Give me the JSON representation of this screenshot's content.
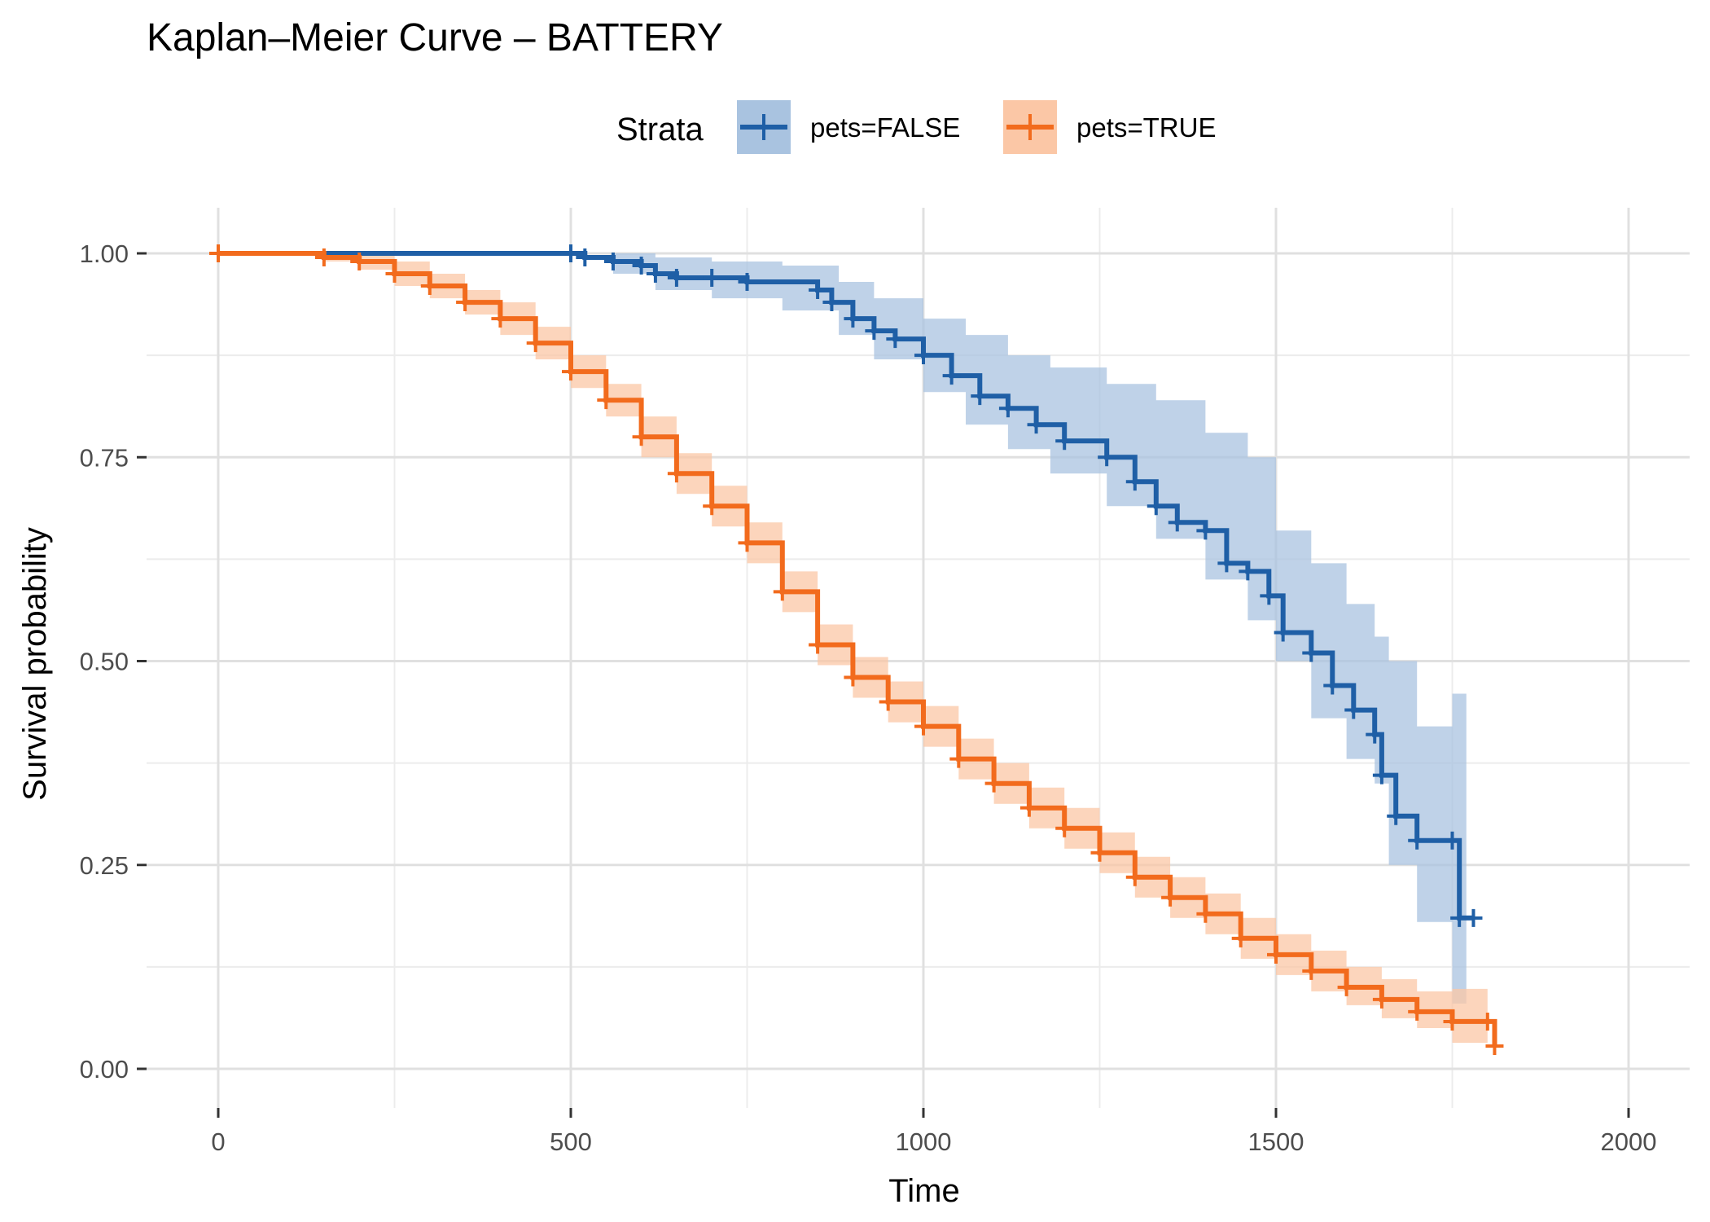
{
  "chart_data": {
    "type": "line",
    "title": "Kaplan–Meier Curve – BATTERY",
    "xlabel": "Time",
    "ylabel": "Survival probability",
    "xlim": [
      0,
      2000
    ],
    "ylim": [
      0,
      1
    ],
    "x_ticks": [
      "0",
      "500",
      "1000",
      "1500",
      "2000"
    ],
    "y_ticks": [
      "0.00",
      "0.25",
      "0.50",
      "0.75",
      "1.00"
    ],
    "grid": true,
    "legend": {
      "title": "Strata",
      "position": "top-center",
      "entries": [
        "pets=FALSE",
        "pets=TRUE"
      ]
    },
    "series": [
      {
        "name": "pets=FALSE",
        "color": "#1f5fa6",
        "band_color": "#a9c3e0",
        "points": [
          [
            0,
            1.0
          ],
          [
            500,
            1.0
          ],
          [
            520,
            0.995
          ],
          [
            560,
            0.99
          ],
          [
            600,
            0.985
          ],
          [
            620,
            0.975
          ],
          [
            650,
            0.97
          ],
          [
            700,
            0.97
          ],
          [
            750,
            0.965
          ],
          [
            850,
            0.955
          ],
          [
            870,
            0.94
          ],
          [
            900,
            0.92
          ],
          [
            930,
            0.905
          ],
          [
            960,
            0.895
          ],
          [
            1000,
            0.875
          ],
          [
            1040,
            0.85
          ],
          [
            1080,
            0.825
          ],
          [
            1120,
            0.81
          ],
          [
            1160,
            0.79
          ],
          [
            1200,
            0.77
          ],
          [
            1260,
            0.75
          ],
          [
            1300,
            0.72
          ],
          [
            1330,
            0.69
          ],
          [
            1360,
            0.67
          ],
          [
            1400,
            0.66
          ],
          [
            1430,
            0.62
          ],
          [
            1460,
            0.61
          ],
          [
            1490,
            0.58
          ],
          [
            1510,
            0.535
          ],
          [
            1550,
            0.51
          ],
          [
            1580,
            0.47
          ],
          [
            1610,
            0.44
          ],
          [
            1640,
            0.41
          ],
          [
            1650,
            0.36
          ],
          [
            1670,
            0.31
          ],
          [
            1700,
            0.28
          ],
          [
            1750,
            0.28
          ],
          [
            1760,
            0.185
          ],
          [
            1780,
            0.185
          ]
        ],
        "upper": [
          [
            0,
            1.0
          ],
          [
            500,
            1.0
          ],
          [
            560,
            1.0
          ],
          [
            620,
            0.995
          ],
          [
            700,
            0.99
          ],
          [
            800,
            0.985
          ],
          [
            880,
            0.965
          ],
          [
            930,
            0.945
          ],
          [
            1000,
            0.92
          ],
          [
            1060,
            0.9
          ],
          [
            1120,
            0.875
          ],
          [
            1180,
            0.86
          ],
          [
            1260,
            0.84
          ],
          [
            1330,
            0.82
          ],
          [
            1400,
            0.78
          ],
          [
            1460,
            0.75
          ],
          [
            1500,
            0.66
          ],
          [
            1550,
            0.62
          ],
          [
            1600,
            0.57
          ],
          [
            1640,
            0.53
          ],
          [
            1660,
            0.5
          ],
          [
            1700,
            0.42
          ],
          [
            1750,
            0.46
          ],
          [
            1770,
            0.46
          ]
        ],
        "lower": [
          [
            0,
            1.0
          ],
          [
            500,
            1.0
          ],
          [
            560,
            0.975
          ],
          [
            620,
            0.955
          ],
          [
            700,
            0.945
          ],
          [
            800,
            0.93
          ],
          [
            880,
            0.9
          ],
          [
            930,
            0.87
          ],
          [
            1000,
            0.83
          ],
          [
            1060,
            0.79
          ],
          [
            1120,
            0.76
          ],
          [
            1180,
            0.73
          ],
          [
            1260,
            0.69
          ],
          [
            1330,
            0.65
          ],
          [
            1400,
            0.6
          ],
          [
            1460,
            0.55
          ],
          [
            1500,
            0.5
          ],
          [
            1550,
            0.43
          ],
          [
            1600,
            0.38
          ],
          [
            1640,
            0.35
          ],
          [
            1660,
            0.25
          ],
          [
            1700,
            0.18
          ],
          [
            1750,
            0.08
          ],
          [
            1770,
            0.08
          ]
        ]
      },
      {
        "name": "pets=TRUE",
        "color": "#f26b1d",
        "band_color": "#fbc7a6",
        "points": [
          [
            0,
            1.0
          ],
          [
            150,
            0.995
          ],
          [
            200,
            0.99
          ],
          [
            250,
            0.975
          ],
          [
            300,
            0.96
          ],
          [
            350,
            0.94
          ],
          [
            400,
            0.92
          ],
          [
            450,
            0.89
          ],
          [
            500,
            0.855
          ],
          [
            550,
            0.82
          ],
          [
            600,
            0.775
          ],
          [
            650,
            0.73
          ],
          [
            700,
            0.69
          ],
          [
            750,
            0.645
          ],
          [
            800,
            0.585
          ],
          [
            850,
            0.52
          ],
          [
            900,
            0.48
          ],
          [
            950,
            0.45
          ],
          [
            1000,
            0.42
          ],
          [
            1050,
            0.38
          ],
          [
            1100,
            0.35
          ],
          [
            1150,
            0.32
          ],
          [
            1200,
            0.295
          ],
          [
            1250,
            0.265
          ],
          [
            1300,
            0.235
          ],
          [
            1350,
            0.21
          ],
          [
            1400,
            0.19
          ],
          [
            1450,
            0.16
          ],
          [
            1500,
            0.14
          ],
          [
            1550,
            0.12
          ],
          [
            1600,
            0.1
          ],
          [
            1650,
            0.085
          ],
          [
            1700,
            0.07
          ],
          [
            1750,
            0.058
          ],
          [
            1800,
            0.058
          ],
          [
            1810,
            0.028
          ]
        ],
        "upper": [
          [
            0,
            1.0
          ],
          [
            150,
            1.0
          ],
          [
            200,
            1.0
          ],
          [
            250,
            0.99
          ],
          [
            300,
            0.975
          ],
          [
            350,
            0.955
          ],
          [
            400,
            0.94
          ],
          [
            450,
            0.91
          ],
          [
            500,
            0.875
          ],
          [
            550,
            0.84
          ],
          [
            600,
            0.8
          ],
          [
            650,
            0.755
          ],
          [
            700,
            0.715
          ],
          [
            750,
            0.67
          ],
          [
            800,
            0.61
          ],
          [
            850,
            0.545
          ],
          [
            900,
            0.505
          ],
          [
            950,
            0.475
          ],
          [
            1000,
            0.445
          ],
          [
            1050,
            0.405
          ],
          [
            1100,
            0.375
          ],
          [
            1150,
            0.345
          ],
          [
            1200,
            0.32
          ],
          [
            1250,
            0.29
          ],
          [
            1300,
            0.26
          ],
          [
            1350,
            0.235
          ],
          [
            1400,
            0.215
          ],
          [
            1450,
            0.185
          ],
          [
            1500,
            0.165
          ],
          [
            1550,
            0.145
          ],
          [
            1600,
            0.125
          ],
          [
            1650,
            0.11
          ],
          [
            1700,
            0.095
          ],
          [
            1750,
            0.098
          ],
          [
            1795,
            0.098
          ],
          [
            1800,
            0.125
          ]
        ],
        "lower": [
          [
            0,
            1.0
          ],
          [
            150,
            0.99
          ],
          [
            200,
            0.98
          ],
          [
            250,
            0.96
          ],
          [
            300,
            0.945
          ],
          [
            350,
            0.925
          ],
          [
            400,
            0.9
          ],
          [
            450,
            0.87
          ],
          [
            500,
            0.835
          ],
          [
            550,
            0.8
          ],
          [
            600,
            0.75
          ],
          [
            650,
            0.705
          ],
          [
            700,
            0.665
          ],
          [
            750,
            0.62
          ],
          [
            800,
            0.56
          ],
          [
            850,
            0.495
          ],
          [
            900,
            0.455
          ],
          [
            950,
            0.425
          ],
          [
            1000,
            0.395
          ],
          [
            1050,
            0.355
          ],
          [
            1100,
            0.325
          ],
          [
            1150,
            0.295
          ],
          [
            1200,
            0.27
          ],
          [
            1250,
            0.24
          ],
          [
            1300,
            0.21
          ],
          [
            1350,
            0.185
          ],
          [
            1400,
            0.165
          ],
          [
            1450,
            0.135
          ],
          [
            1500,
            0.115
          ],
          [
            1550,
            0.095
          ],
          [
            1600,
            0.078
          ],
          [
            1650,
            0.062
          ],
          [
            1700,
            0.05
          ],
          [
            1750,
            0.032
          ],
          [
            1795,
            0.032
          ],
          [
            1800,
            0.012
          ]
        ]
      }
    ]
  }
}
